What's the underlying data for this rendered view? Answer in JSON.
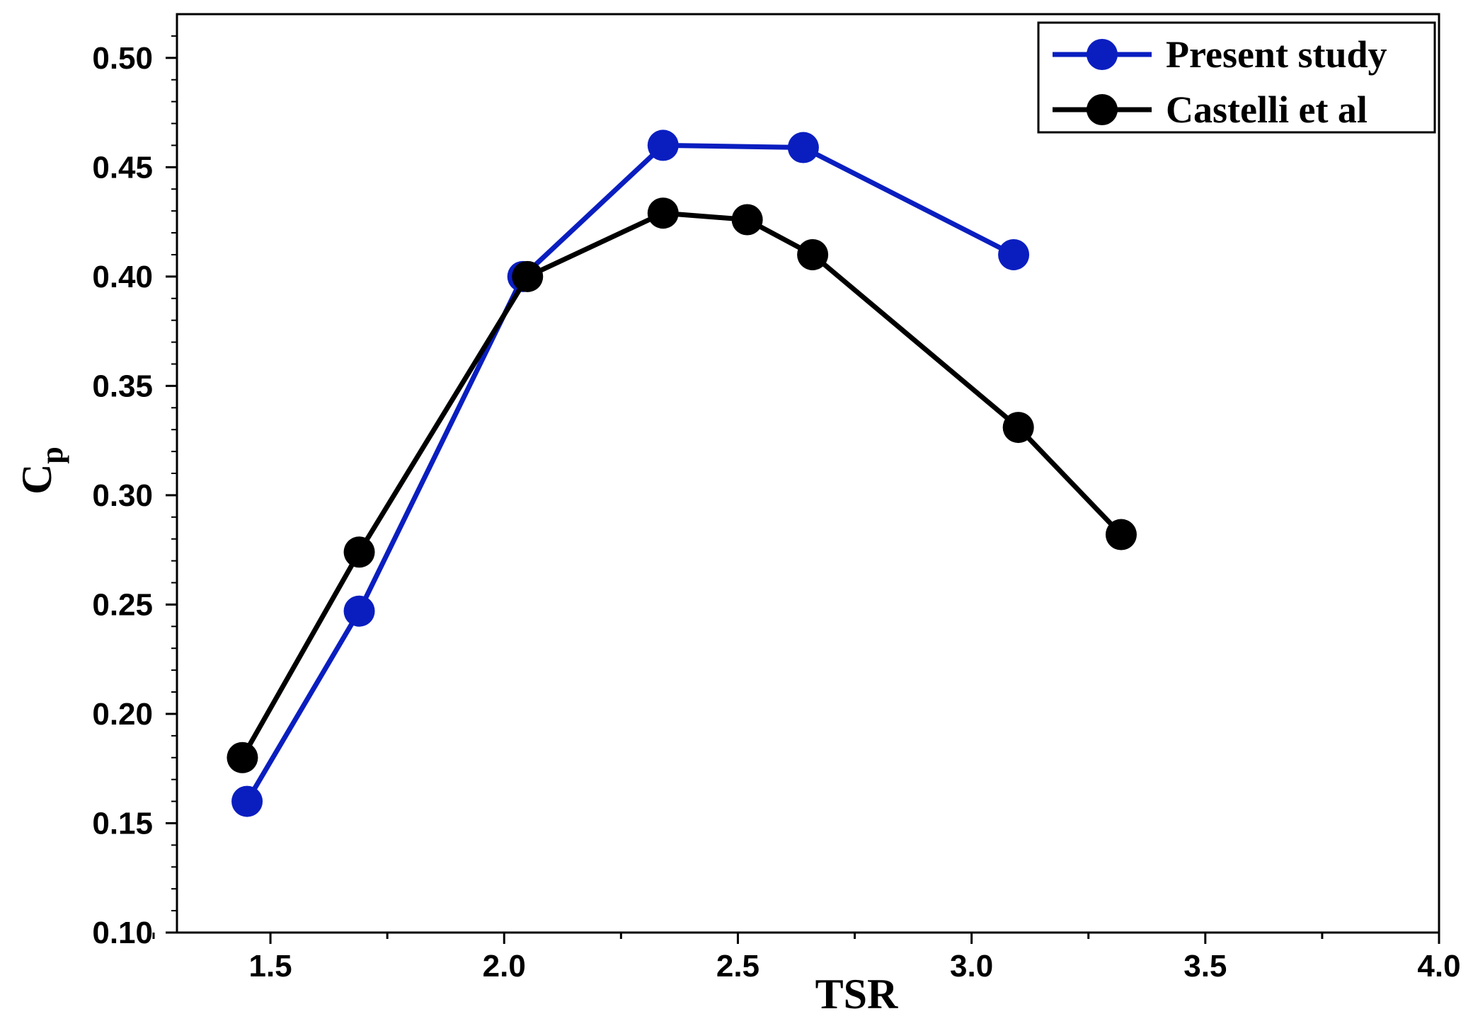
{
  "chart_data": {
    "type": "line",
    "title": "",
    "xlabel": "TSR",
    "ylabel_main": "C",
    "ylabel_sub": "p",
    "xlim": [
      1.3,
      4.0
    ],
    "ylim": [
      0.1,
      0.52
    ],
    "x_ticks": [
      1.5,
      2.0,
      2.5,
      3.0,
      3.5,
      4.0
    ],
    "x_tick_labels": [
      "1.5",
      "2.0",
      "2.5",
      "3.0",
      "3.5",
      "4.0"
    ],
    "y_ticks": [
      0.1,
      0.15,
      0.2,
      0.25,
      0.3,
      0.35,
      0.4,
      0.45,
      0.5
    ],
    "y_tick_labels": [
      "0.10",
      "0.15",
      "0.20",
      "0.25",
      "0.30",
      "0.35",
      "0.40",
      "0.45",
      "0.50"
    ],
    "legend_position": "top-right",
    "grid": false,
    "series": [
      {
        "name": "Present study",
        "color": "#0a1ec0",
        "x": [
          1.45,
          1.69,
          2.04,
          2.34,
          2.64,
          3.09
        ],
        "y": [
          0.16,
          0.247,
          0.4,
          0.46,
          0.459,
          0.41
        ]
      },
      {
        "name": "Castelli et al",
        "color": "#000000",
        "x": [
          1.44,
          1.69,
          2.05,
          2.34,
          2.52,
          2.66,
          3.1,
          3.32
        ],
        "y": [
          0.18,
          0.274,
          0.4,
          0.429,
          0.426,
          0.41,
          0.331,
          0.282
        ]
      }
    ]
  }
}
